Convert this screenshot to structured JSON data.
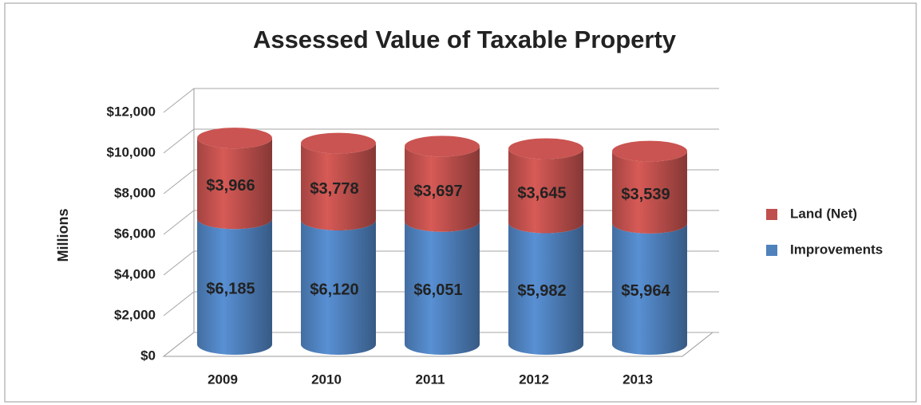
{
  "chart_data": {
    "type": "bar",
    "stacked": true,
    "title": "Assessed Value of Taxable Property",
    "y_label": "Millions",
    "categories": [
      "2009",
      "2010",
      "2011",
      "2012",
      "2013"
    ],
    "series": [
      {
        "name": "Improvements",
        "color": "#4f81bd",
        "values": [
          6185,
          6120,
          6051,
          5982,
          5964
        ],
        "value_labels": [
          "$6,185",
          "$6,120",
          "$6,051",
          "$5,982",
          "$5,964"
        ]
      },
      {
        "name": "Land (Net)",
        "color": "#c0504d",
        "values": [
          3966,
          3778,
          3697,
          3645,
          3539
        ],
        "value_labels": [
          "$3,966",
          "$3,778",
          "$3,697",
          "$3,645",
          "$3,539"
        ]
      }
    ],
    "ylim": [
      0,
      12000
    ],
    "yticks": [
      {
        "value": 0,
        "label": "$0"
      },
      {
        "value": 2000,
        "label": "$2,000"
      },
      {
        "value": 4000,
        "label": "$4,000"
      },
      {
        "value": 6000,
        "label": "$6,000"
      },
      {
        "value": 8000,
        "label": "$8,000"
      },
      {
        "value": 10000,
        "label": "$10,000"
      },
      {
        "value": 12000,
        "label": "$12,000"
      }
    ],
    "grid": true,
    "legend": "right"
  }
}
